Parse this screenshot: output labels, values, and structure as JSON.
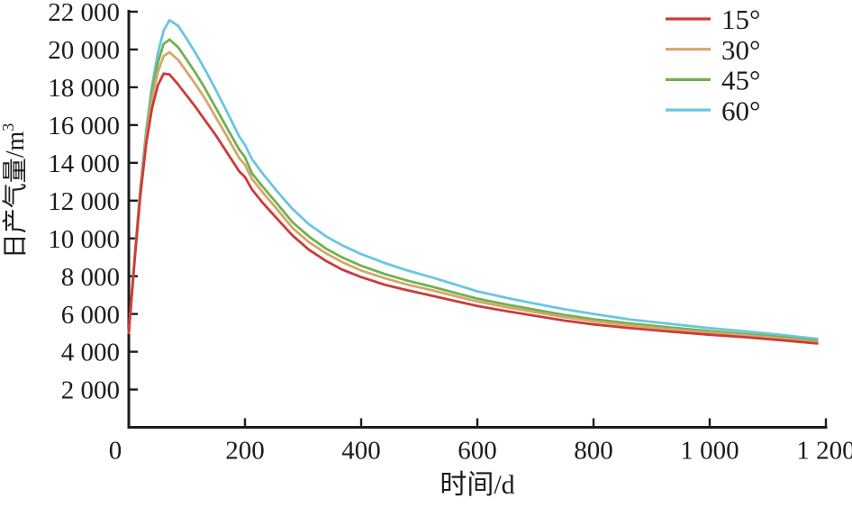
{
  "figure": {
    "background": "#ffffff",
    "axis_color": "#1c1c1c",
    "text_color": "#1c1c1c"
  },
  "chart_data": {
    "type": "line",
    "title": "",
    "xlabel": "时间/d",
    "ylabel": "日产气量/m³",
    "ylabel_base": "日产气量/m",
    "ylabel_superscript": "3",
    "xlim": [
      0,
      1200
    ],
    "ylim": [
      0,
      22000
    ],
    "grid": false,
    "legend_position": "top-right",
    "x_ticks": [
      0,
      200,
      400,
      600,
      800,
      1000,
      1200
    ],
    "x_tick_labels": [
      "0",
      "200",
      "400",
      "600",
      "800",
      "1 000",
      "1 200"
    ],
    "y_ticks": [
      2000,
      4000,
      6000,
      8000,
      10000,
      12000,
      14000,
      16000,
      18000,
      20000,
      22000
    ],
    "y_tick_labels": [
      "2 000",
      "4 000",
      "6 000",
      "8 000",
      "10 000",
      "12 000",
      "14 000",
      "16 000",
      "18 000",
      "20 000",
      "22 000"
    ],
    "x": [
      0,
      10,
      20,
      30,
      40,
      50,
      60,
      70,
      85,
      100,
      115,
      130,
      150,
      170,
      190,
      200,
      212,
      230,
      255,
      282,
      310,
      340,
      367,
      400,
      440,
      480,
      520,
      560,
      600,
      650,
      700,
      750,
      800,
      864,
      930,
      1000,
      1060,
      1120,
      1185
    ],
    "series": [
      {
        "name": "15°",
        "color": "#cf3a3a",
        "values": [
          5000,
          8800,
          12300,
          15000,
          16900,
          18100,
          18720,
          18680,
          18150,
          17550,
          16950,
          16300,
          15450,
          14500,
          13550,
          13250,
          12600,
          11900,
          11050,
          10150,
          9400,
          8800,
          8350,
          7950,
          7550,
          7250,
          6980,
          6700,
          6420,
          6150,
          5900,
          5650,
          5450,
          5250,
          5070,
          4900,
          4770,
          4620,
          4440
        ]
      },
      {
        "name": "30°",
        "color": "#d4a76a",
        "values": [
          5000,
          8850,
          12450,
          15300,
          17400,
          18800,
          19650,
          19850,
          19450,
          18800,
          18150,
          17450,
          16400,
          15350,
          14250,
          13900,
          13150,
          12450,
          11550,
          10550,
          9800,
          9200,
          8750,
          8300,
          7900,
          7550,
          7270,
          6960,
          6660,
          6360,
          6090,
          5830,
          5610,
          5390,
          5200,
          5010,
          4870,
          4720,
          4510
        ]
      },
      {
        "name": "45°",
        "color": "#6fb151",
        "values": [
          5000,
          8900,
          12600,
          15500,
          17800,
          19300,
          20300,
          20520,
          20120,
          19450,
          18750,
          18000,
          16900,
          15800,
          14700,
          14300,
          13450,
          12750,
          11850,
          10850,
          10100,
          9450,
          9000,
          8550,
          8120,
          7760,
          7460,
          7130,
          6810,
          6500,
          6220,
          5950,
          5720,
          5490,
          5290,
          5090,
          4940,
          4780,
          4570
        ]
      },
      {
        "name": "60°",
        "color": "#6ac6e0",
        "values": [
          5000,
          8950,
          12750,
          15700,
          18100,
          19800,
          21000,
          21550,
          21250,
          20550,
          19800,
          19000,
          17850,
          16650,
          15400,
          14950,
          14200,
          13450,
          12500,
          11550,
          10750,
          10100,
          9640,
          9170,
          8700,
          8300,
          7950,
          7580,
          7200,
          6850,
          6540,
          6250,
          6000,
          5700,
          5480,
          5250,
          5080,
          4900,
          4680
        ]
      }
    ]
  }
}
